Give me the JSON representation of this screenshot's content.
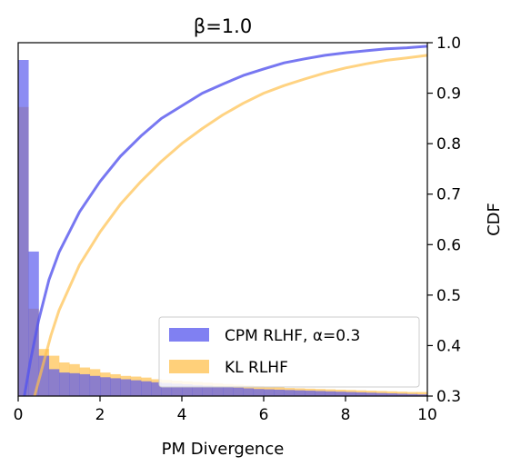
{
  "chart_data": {
    "type": "histogram+cdf",
    "title": "β=1.0",
    "xlabel": "PM Divergence",
    "ylabel_right": "CDF",
    "xlim": [
      0,
      10
    ],
    "x_ticks": [
      "0",
      "2",
      "4",
      "6",
      "8",
      "10"
    ],
    "cdf_ylim": [
      0.3,
      1.0
    ],
    "cdf_ticks": [
      "0.3",
      "0.4",
      "0.5",
      "0.6",
      "0.7",
      "0.8",
      "0.9",
      "1.0"
    ],
    "left_axis_ticks_shown": false,
    "grid": false,
    "legend_position": "lower-right",
    "bin_width": 0.25,
    "series": [
      {
        "name": "CPM RLHF, α=0.3",
        "color": "#5555ee",
        "hist_density": [
          1.0,
          0.43,
          0.12,
          0.08,
          0.07,
          0.068,
          0.065,
          0.06,
          0.056,
          0.053,
          0.05,
          0.047,
          0.044,
          0.041,
          0.039,
          0.037,
          0.035,
          0.033,
          0.031,
          0.029,
          0.027,
          0.025,
          0.023,
          0.021,
          0.02,
          0.019,
          0.018,
          0.017,
          0.016,
          0.015,
          0.014,
          0.013,
          0.012,
          0.011,
          0.01,
          0.009,
          0.008,
          0.007,
          0.006,
          0.005
        ],
        "cdf": {
          "x": [
            0.15,
            0.3,
            0.5,
            0.75,
            1.0,
            1.5,
            2.0,
            2.5,
            3.0,
            3.5,
            4.0,
            4.5,
            5.0,
            5.5,
            6.0,
            6.5,
            7.0,
            7.5,
            8.0,
            8.5,
            9.0,
            9.5,
            10.0
          ],
          "y": [
            0.3,
            0.37,
            0.45,
            0.53,
            0.585,
            0.665,
            0.725,
            0.775,
            0.815,
            0.85,
            0.875,
            0.9,
            0.918,
            0.935,
            0.948,
            0.96,
            0.968,
            0.975,
            0.98,
            0.984,
            0.988,
            0.99,
            0.993
          ]
        }
      },
      {
        "name": "KL RLHF",
        "color": "#ffc04d",
        "hist_density": [
          0.86,
          0.26,
          0.14,
          0.12,
          0.1,
          0.095,
          0.085,
          0.08,
          0.07,
          0.065,
          0.06,
          0.058,
          0.055,
          0.05,
          0.048,
          0.046,
          0.044,
          0.042,
          0.04,
          0.038,
          0.036,
          0.034,
          0.032,
          0.03,
          0.028,
          0.026,
          0.024,
          0.023,
          0.022,
          0.021,
          0.02,
          0.019,
          0.018,
          0.017,
          0.016,
          0.015,
          0.014,
          0.013,
          0.012,
          0.012
        ],
        "cdf": {
          "x": [
            0.4,
            0.6,
            0.8,
            1.0,
            1.5,
            2.0,
            2.5,
            3.0,
            3.5,
            4.0,
            4.5,
            5.0,
            5.5,
            6.0,
            6.5,
            7.0,
            7.5,
            8.0,
            8.5,
            9.0,
            9.5,
            10.0
          ],
          "y": [
            0.3,
            0.36,
            0.42,
            0.47,
            0.56,
            0.625,
            0.68,
            0.725,
            0.765,
            0.8,
            0.83,
            0.857,
            0.88,
            0.9,
            0.915,
            0.928,
            0.94,
            0.95,
            0.958,
            0.965,
            0.97,
            0.975
          ]
        }
      }
    ]
  }
}
